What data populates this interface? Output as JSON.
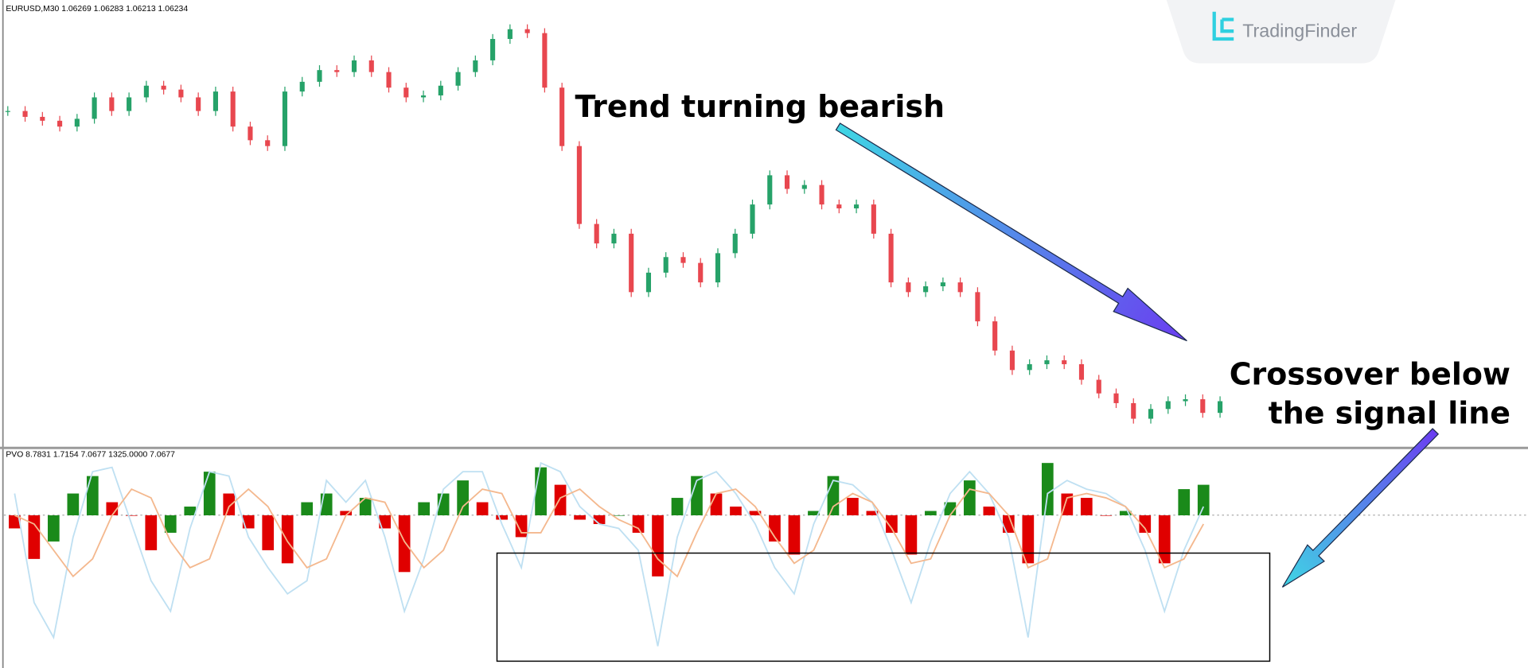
{
  "header": {
    "symbol_info": "EURUSD,M30  1.06269 1.06283 1.06213 1.06234"
  },
  "logo": "TradingFinder",
  "annotations": {
    "trend": "Trend turning bearish",
    "crossover": [
      "Crossover below",
      "the signal line"
    ]
  },
  "chart_data": [
    {
      "type": "candlestick",
      "values": [
        1.0772,
        1.0769,
        1.0767,
        1.0764,
        1.0768,
        1.0779,
        1.0772,
        1.0779,
        1.0785,
        1.0783,
        1.0779,
        1.0772,
        1.0782,
        1.0764,
        1.0757,
        1.0754,
        1.0782,
        1.0787,
        1.0793,
        1.0792,
        1.0798,
        1.0792,
        1.0784,
        1.0779,
        1.078,
        1.0785,
        1.0792,
        1.0798,
        1.0809,
        1.0814,
        1.0812,
        1.0784,
        1.0754,
        1.0714,
        1.0704,
        1.0709,
        1.0679,
        1.0689,
        1.0697,
        1.0694,
        1.0684,
        1.0699,
        1.0709,
        1.0724,
        1.0739,
        1.0732,
        1.0734,
        1.0724,
        1.0722,
        1.0724,
        1.0709,
        1.0684,
        1.0679,
        1.0682,
        1.0684,
        1.0679,
        1.0664,
        1.0649,
        1.0639,
        1.0642,
        1.0644,
        1.0642,
        1.0634,
        1.0627,
        1.0622,
        1.0614,
        1.0619,
        1.0623,
        1.0624,
        1.0617,
        1.0623
      ],
      "ylim": [
        1.06,
        1.0829
      ],
      "up_color": "#26a269",
      "down_color": "#e8474f"
    },
    {
      "type": "histogram",
      "title": "PVO 8.7831 1.7154 7.0677 1325.0000 7.0677",
      "values": [
        -3,
        -10,
        -6,
        5,
        9,
        3,
        0,
        -8,
        -4,
        2,
        10,
        5,
        -3,
        -8,
        -11,
        3,
        5,
        1,
        4,
        -3,
        -13,
        3,
        5,
        8,
        3,
        -1,
        -5,
        11,
        7,
        -1,
        -2,
        0,
        -4,
        -14,
        4,
        9,
        5,
        2,
        1,
        -6,
        -9,
        1,
        9,
        4,
        1,
        -4,
        -9,
        1,
        3,
        8,
        2,
        -4,
        -11,
        12,
        5,
        4,
        0,
        1,
        -4,
        -11,
        6,
        7
      ],
      "ylim": [
        -35,
        15
      ],
      "up_color": "#1a8a1a",
      "down_color": "#e00000",
      "series": [
        {
          "color": "#bfe0f2",
          "values": [
            5,
            -20,
            -28,
            -5,
            10,
            11,
            -2,
            -15,
            -22,
            -3,
            10,
            9,
            -5,
            -12,
            -18,
            -15,
            8,
            3,
            8,
            -5,
            -22,
            -10,
            6,
            10,
            10,
            -2,
            -12,
            12,
            10,
            2,
            -2,
            -3,
            -8,
            -30,
            -5,
            8,
            10,
            5,
            -2,
            -12,
            -18,
            -2,
            8,
            7,
            3,
            -8,
            -20,
            -6,
            5,
            10,
            5,
            -5,
            -28,
            5,
            8,
            6,
            5,
            2,
            -8,
            -22,
            -8,
            2
          ]
        },
        {
          "color": "#f4b88e",
          "values": [
            0,
            -2,
            -8,
            -14,
            -10,
            0,
            6,
            4,
            -6,
            -12,
            -10,
            2,
            6,
            2,
            -6,
            -12,
            -10,
            0,
            4,
            3,
            -6,
            -12,
            -8,
            2,
            6,
            5,
            -4,
            -4,
            4,
            6,
            2,
            -1,
            -3,
            -10,
            -14,
            -4,
            5,
            6,
            2,
            -5,
            -11,
            -8,
            2,
            5,
            3,
            -3,
            -11,
            -10,
            0,
            6,
            5,
            0,
            -12,
            -10,
            4,
            5,
            4,
            2,
            -3,
            -12,
            -10,
            -2
          ]
        }
      ]
    }
  ]
}
